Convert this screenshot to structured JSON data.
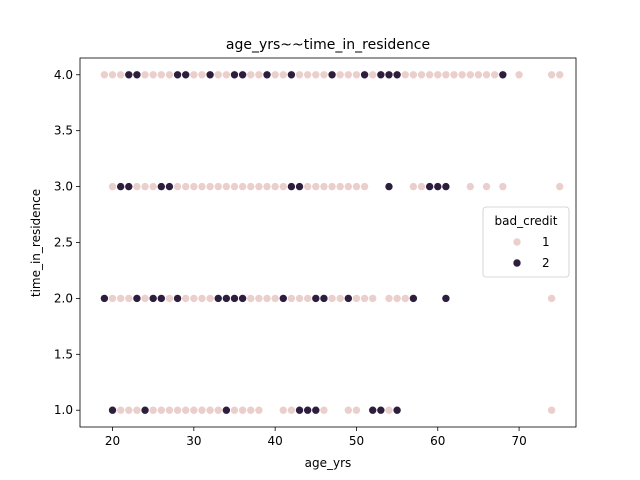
{
  "chart_data": {
    "type": "scatter",
    "title": "age_yrs~~time_in_residence",
    "xlabel": "age_yrs",
    "ylabel": "time_in_residence",
    "xlim": [
      16,
      77
    ],
    "ylim": [
      0.85,
      4.15
    ],
    "xticks": [
      "20",
      "30",
      "40",
      "50",
      "60",
      "70"
    ],
    "yticks": [
      "1.0",
      "1.5",
      "2.0",
      "2.5",
      "3.0",
      "3.5",
      "4.0"
    ],
    "grid": false,
    "legend": {
      "title": "bad_credit",
      "placement": "right",
      "entries": [
        "1",
        "2"
      ]
    },
    "colors": {
      "1": "#ebcfcc",
      "2": "#2d1e3e"
    },
    "series": [
      {
        "name": "1",
        "points": [
          [
            19,
            4.0
          ],
          [
            20,
            4.0
          ],
          [
            21,
            4.0
          ],
          [
            23,
            4.0
          ],
          [
            24,
            4.0
          ],
          [
            25,
            4.0
          ],
          [
            26,
            4.0
          ],
          [
            27,
            4.0
          ],
          [
            29,
            4.0
          ],
          [
            30,
            4.0
          ],
          [
            31,
            4.0
          ],
          [
            33,
            4.0
          ],
          [
            34,
            4.0
          ],
          [
            35,
            4.0
          ],
          [
            37,
            4.0
          ],
          [
            38,
            4.0
          ],
          [
            39,
            4.0
          ],
          [
            40,
            4.0
          ],
          [
            41,
            4.0
          ],
          [
            43,
            4.0
          ],
          [
            44,
            4.0
          ],
          [
            45,
            4.0
          ],
          [
            46,
            4.0
          ],
          [
            48,
            4.0
          ],
          [
            49,
            4.0
          ],
          [
            50,
            4.0
          ],
          [
            52,
            4.0
          ],
          [
            56,
            4.0
          ],
          [
            57,
            4.0
          ],
          [
            58,
            4.0
          ],
          [
            59,
            4.0
          ],
          [
            60,
            4.0
          ],
          [
            61,
            4.0
          ],
          [
            62,
            4.0
          ],
          [
            63,
            4.0
          ],
          [
            64,
            4.0
          ],
          [
            65,
            4.0
          ],
          [
            66,
            4.0
          ],
          [
            67,
            4.0
          ],
          [
            70,
            4.0
          ],
          [
            74,
            4.0
          ],
          [
            75,
            4.0
          ],
          [
            20,
            3.0
          ],
          [
            21,
            3.0
          ],
          [
            23,
            3.0
          ],
          [
            24,
            3.0
          ],
          [
            25,
            3.0
          ],
          [
            28,
            3.0
          ],
          [
            29,
            3.0
          ],
          [
            30,
            3.0
          ],
          [
            31,
            3.0
          ],
          [
            32,
            3.0
          ],
          [
            33,
            3.0
          ],
          [
            34,
            3.0
          ],
          [
            35,
            3.0
          ],
          [
            36,
            3.0
          ],
          [
            37,
            3.0
          ],
          [
            38,
            3.0
          ],
          [
            39,
            3.0
          ],
          [
            40,
            3.0
          ],
          [
            41,
            3.0
          ],
          [
            44,
            3.0
          ],
          [
            45,
            3.0
          ],
          [
            46,
            3.0
          ],
          [
            47,
            3.0
          ],
          [
            48,
            3.0
          ],
          [
            49,
            3.0
          ],
          [
            50,
            3.0
          ],
          [
            51,
            3.0
          ],
          [
            57,
            3.0
          ],
          [
            58,
            3.0
          ],
          [
            64,
            3.0
          ],
          [
            66,
            3.0
          ],
          [
            68,
            3.0
          ],
          [
            75,
            3.0
          ],
          [
            20,
            2.0
          ],
          [
            21,
            2.0
          ],
          [
            22,
            2.0
          ],
          [
            24,
            2.0
          ],
          [
            27,
            2.0
          ],
          [
            28,
            2.0
          ],
          [
            29,
            2.0
          ],
          [
            30,
            2.0
          ],
          [
            31,
            2.0
          ],
          [
            32,
            2.0
          ],
          [
            37,
            2.0
          ],
          [
            38,
            2.0
          ],
          [
            39,
            2.0
          ],
          [
            40,
            2.0
          ],
          [
            42,
            2.0
          ],
          [
            43,
            2.0
          ],
          [
            44,
            2.0
          ],
          [
            47,
            2.0
          ],
          [
            48,
            2.0
          ],
          [
            50,
            2.0
          ],
          [
            51,
            2.0
          ],
          [
            52,
            2.0
          ],
          [
            54,
            2.0
          ],
          [
            55,
            2.0
          ],
          [
            56,
            2.0
          ],
          [
            74,
            2.0
          ],
          [
            21,
            1.0
          ],
          [
            22,
            1.0
          ],
          [
            23,
            1.0
          ],
          [
            25,
            1.0
          ],
          [
            26,
            1.0
          ],
          [
            27,
            1.0
          ],
          [
            28,
            1.0
          ],
          [
            29,
            1.0
          ],
          [
            30,
            1.0
          ],
          [
            31,
            1.0
          ],
          [
            32,
            1.0
          ],
          [
            33,
            1.0
          ],
          [
            35,
            1.0
          ],
          [
            36,
            1.0
          ],
          [
            37,
            1.0
          ],
          [
            38,
            1.0
          ],
          [
            41,
            1.0
          ],
          [
            42,
            1.0
          ],
          [
            46,
            1.0
          ],
          [
            49,
            1.0
          ],
          [
            50,
            1.0
          ],
          [
            54,
            1.0
          ],
          [
            74,
            1.0
          ]
        ]
      },
      {
        "name": "2",
        "points": [
          [
            22,
            4.0
          ],
          [
            23,
            4.0
          ],
          [
            28,
            4.0
          ],
          [
            29,
            4.0
          ],
          [
            32,
            4.0
          ],
          [
            35,
            4.0
          ],
          [
            36,
            4.0
          ],
          [
            39,
            4.0
          ],
          [
            42,
            4.0
          ],
          [
            47,
            4.0
          ],
          [
            51,
            4.0
          ],
          [
            53,
            4.0
          ],
          [
            54,
            4.0
          ],
          [
            55,
            4.0
          ],
          [
            68,
            4.0
          ],
          [
            21,
            3.0
          ],
          [
            22,
            3.0
          ],
          [
            26,
            3.0
          ],
          [
            27,
            3.0
          ],
          [
            42,
            3.0
          ],
          [
            43,
            3.0
          ],
          [
            54,
            3.0
          ],
          [
            59,
            3.0
          ],
          [
            60,
            3.0
          ],
          [
            61,
            3.0
          ],
          [
            19,
            2.0
          ],
          [
            23,
            2.0
          ],
          [
            25,
            2.0
          ],
          [
            26,
            2.0
          ],
          [
            28,
            2.0
          ],
          [
            33,
            2.0
          ],
          [
            34,
            2.0
          ],
          [
            35,
            2.0
          ],
          [
            36,
            2.0
          ],
          [
            41,
            2.0
          ],
          [
            45,
            2.0
          ],
          [
            46,
            2.0
          ],
          [
            49,
            2.0
          ],
          [
            57,
            2.0
          ],
          [
            61,
            2.0
          ],
          [
            20,
            1.0
          ],
          [
            24,
            1.0
          ],
          [
            34,
            1.0
          ],
          [
            43,
            1.0
          ],
          [
            44,
            1.0
          ],
          [
            45,
            1.0
          ],
          [
            52,
            1.0
          ],
          [
            53,
            1.0
          ],
          [
            55,
            1.0
          ]
        ]
      }
    ]
  }
}
